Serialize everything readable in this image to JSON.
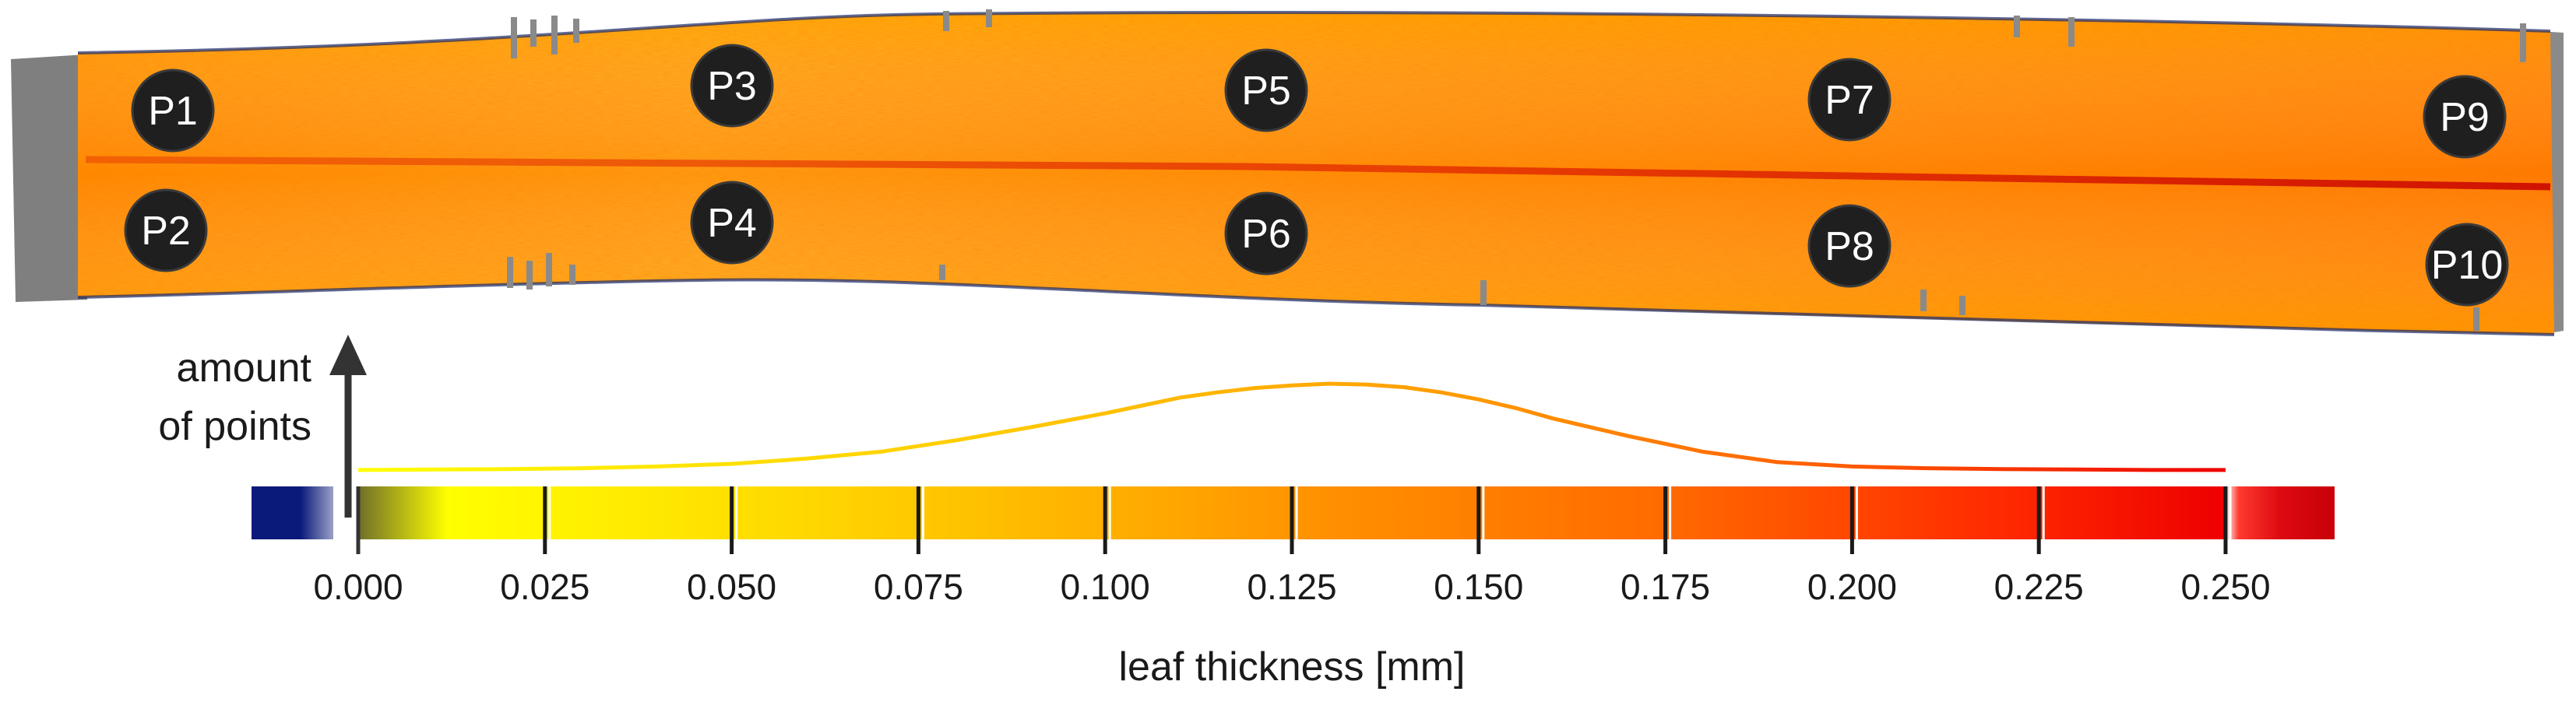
{
  "chart_data": {
    "type": "area",
    "title": "",
    "xlabel": "leaf thickness [mm]",
    "ylabel_lines": [
      "amount",
      "of points"
    ],
    "xlim": [
      0.0,
      0.25
    ],
    "ticks": [
      "0.000",
      "0.025",
      "0.050",
      "0.075",
      "0.100",
      "0.125",
      "0.150",
      "0.175",
      "0.200",
      "0.225",
      "0.250"
    ],
    "tick_values": [
      0.0,
      0.025,
      0.05,
      0.075,
      0.1,
      0.125,
      0.15,
      0.175,
      0.2,
      0.225,
      0.25
    ],
    "histogram": {
      "x": [
        0.0,
        0.01,
        0.02,
        0.03,
        0.04,
        0.05,
        0.06,
        0.07,
        0.08,
        0.09,
        0.1,
        0.105,
        0.11,
        0.115,
        0.12,
        0.125,
        0.13,
        0.135,
        0.14,
        0.145,
        0.15,
        0.155,
        0.16,
        0.17,
        0.18,
        0.19,
        0.2,
        0.21,
        0.22,
        0.23,
        0.24,
        0.25
      ],
      "y": [
        0.01,
        0.015,
        0.02,
        0.03,
        0.05,
        0.08,
        0.14,
        0.22,
        0.35,
        0.5,
        0.66,
        0.75,
        0.84,
        0.9,
        0.95,
        0.98,
        1.0,
        0.99,
        0.96,
        0.9,
        0.82,
        0.72,
        0.6,
        0.4,
        0.22,
        0.1,
        0.05,
        0.03,
        0.02,
        0.015,
        0.01,
        0.01
      ]
    },
    "colorscale": {
      "below_range_color": "#0a1a7a",
      "above_range_color": "#c80008",
      "stops": [
        {
          "value": 0.0,
          "color": "#6f6f2a"
        },
        {
          "value": 0.012,
          "color": "#ffff00"
        },
        {
          "value": 0.06,
          "color": "#ffd700"
        },
        {
          "value": 0.1,
          "color": "#ffb000"
        },
        {
          "value": 0.13,
          "color": "#ff9000"
        },
        {
          "value": 0.175,
          "color": "#ff6a00"
        },
        {
          "value": 0.22,
          "color": "#ff2a00"
        },
        {
          "value": 0.25,
          "color": "#ee0000"
        }
      ]
    },
    "markers": [
      "P1",
      "P2",
      "P3",
      "P4",
      "P5",
      "P6",
      "P7",
      "P8",
      "P9",
      "P10"
    ]
  }
}
